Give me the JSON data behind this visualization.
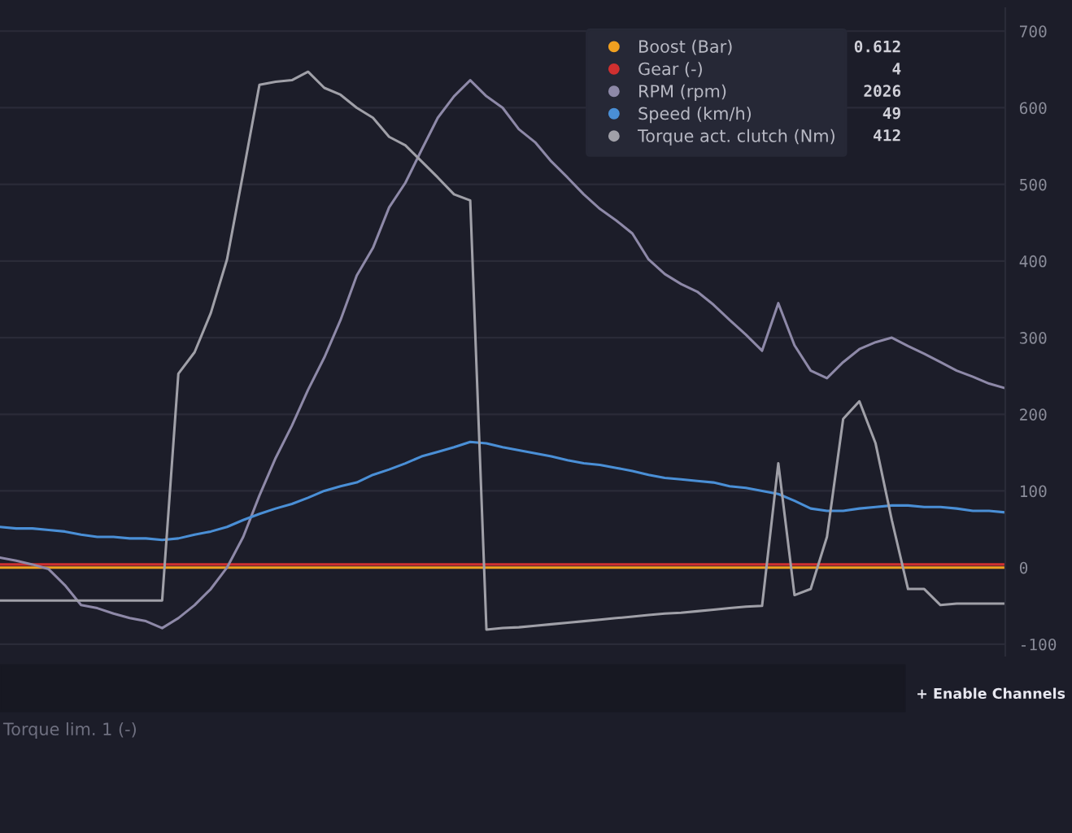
{
  "chart_data": {
    "type": "line",
    "categories": [
      null,
      null,
      null,
      null,
      null,
      null,
      null,
      null,
      null,
      null,
      null,
      null,
      null,
      null,
      null,
      null,
      null,
      null,
      null,
      null,
      null,
      null,
      null,
      null,
      null,
      null,
      null,
      null,
      null,
      null,
      null,
      null,
      null,
      null,
      null,
      null,
      null,
      null,
      null,
      null,
      null,
      null,
      null,
      null,
      null,
      null,
      null,
      null,
      null,
      null,
      null,
      null,
      null,
      null,
      null,
      null,
      null,
      null,
      null,
      null,
      null,
      null,
      null
    ],
    "series": [
      {
        "name": "Boost (Bar)",
        "color": "#f0a020",
        "values": [
          0,
          0,
          0,
          0,
          0,
          0,
          0,
          0,
          0,
          0,
          0,
          0,
          0,
          0,
          0,
          0,
          0,
          0,
          0,
          0,
          0,
          0,
          0,
          0,
          0,
          0,
          0,
          0,
          0,
          0,
          0,
          0,
          0,
          0,
          0,
          0,
          0,
          0,
          0,
          0,
          0,
          0,
          0,
          0,
          0,
          0,
          0,
          0,
          0,
          0,
          0,
          0,
          0,
          0,
          0,
          0,
          0,
          0,
          0,
          0,
          0,
          0,
          0
        ]
      },
      {
        "name": "Gear (-)",
        "color": "#d03030",
        "values": [
          4,
          4,
          4,
          4,
          4,
          4,
          4,
          4,
          4,
          4,
          4,
          4,
          4,
          4,
          4,
          4,
          4,
          4,
          4,
          4,
          4,
          4,
          4,
          4,
          4,
          4,
          4,
          4,
          4,
          4,
          4,
          4,
          4,
          4,
          4,
          4,
          4,
          4,
          4,
          4,
          4,
          4,
          4,
          4,
          4,
          4,
          4,
          4,
          4,
          4,
          4,
          4,
          4,
          4,
          4,
          4,
          4,
          4,
          4,
          4,
          4,
          4,
          4
        ]
      },
      {
        "name": "RPM (rpm)",
        "color": "#8e89a8",
        "values": [
          13,
          9,
          4,
          -2,
          -23,
          -49,
          -53,
          -60,
          -66,
          -70,
          -79,
          -66,
          -49,
          -28,
          0,
          40,
          94,
          143,
          185,
          232,
          274,
          323,
          381,
          417,
          470,
          502,
          545,
          587,
          615,
          636,
          615,
          600,
          572,
          555,
          530,
          509,
          487,
          468,
          453,
          436,
          402,
          383,
          370,
          360,
          343,
          323,
          304,
          283,
          345,
          290,
          257,
          247,
          268,
          285,
          294,
          300,
          289,
          279,
          268,
          257,
          249,
          240,
          234
        ]
      },
      {
        "name": "Speed (km/h)",
        "color": "#4a8fd6",
        "values": [
          53,
          51,
          51,
          49,
          47,
          43,
          40,
          40,
          38,
          38,
          36,
          38,
          43,
          47,
          53,
          62,
          70,
          77,
          83,
          91,
          100,
          106,
          111,
          121,
          128,
          136,
          145,
          151,
          157,
          164,
          162,
          157,
          153,
          149,
          145,
          140,
          136,
          134,
          130,
          126,
          121,
          117,
          115,
          113,
          111,
          106,
          104,
          100,
          96,
          87,
          77,
          74,
          74,
          77,
          79,
          81,
          81,
          79,
          79,
          77,
          74,
          74,
          72
        ]
      },
      {
        "name": "Torque act. clutch (Nm)",
        "color": "#a0a0a8",
        "values": [
          -43,
          -43,
          -43,
          -43,
          -43,
          -43,
          -43,
          -43,
          -43,
          -43,
          -43,
          253,
          281,
          332,
          402,
          515,
          630,
          634,
          636,
          647,
          626,
          617,
          600,
          587,
          562,
          551,
          530,
          509,
          487,
          479,
          -81,
          -79,
          -78,
          -76,
          -74,
          -72,
          -70,
          -68,
          -66,
          -64,
          -62,
          -60,
          -59,
          -57,
          -55,
          -53,
          -51,
          -50,
          136,
          -36,
          -28,
          40,
          194,
          217,
          162,
          62,
          -28,
          -28,
          -49,
          -47,
          -47,
          -47,
          -47
        ]
      }
    ],
    "ylim": [
      -115,
      730
    ],
    "yticks": [
      -100,
      0,
      100,
      200,
      300,
      400,
      500,
      600,
      700
    ],
    "tick_labels": "y",
    "grid": "y",
    "legend": "top right",
    "annotations": [
      "0.612",
      "4",
      "2026",
      "49",
      "412",
      "+ Enable Channels",
      "Torque lim. 1 (-)"
    ]
  }
}
